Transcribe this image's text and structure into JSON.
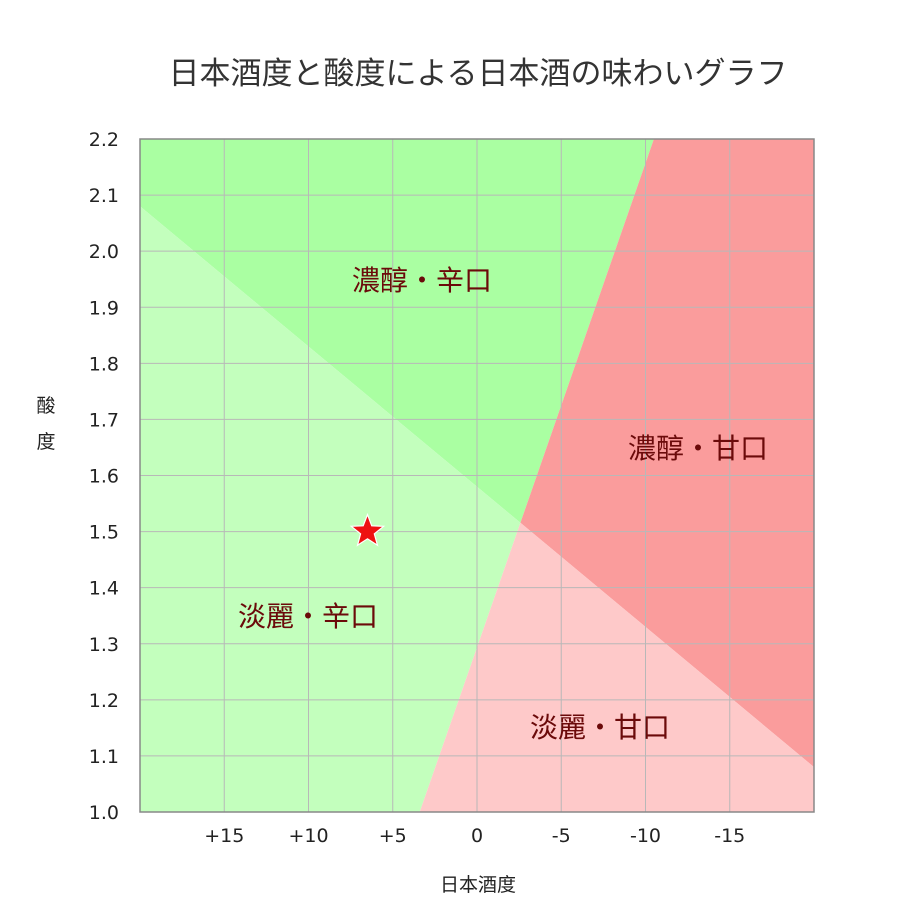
{
  "chart_data": {
    "type": "scatter",
    "title": "日本酒度と酸度による日本酒の味わいグラフ",
    "xlabel": "日本酒度",
    "ylabel": "酸度",
    "x_reversed": true,
    "xlim": [
      20,
      -20
    ],
    "ylim": [
      1.0,
      2.2
    ],
    "xticks": [
      15,
      10,
      5,
      0,
      -5,
      -10,
      -15
    ],
    "xtick_labels": [
      "+15",
      "+10",
      "+5",
      "0",
      "-5",
      "-10",
      "-15"
    ],
    "yticks": [
      1.0,
      1.1,
      1.2,
      1.3,
      1.4,
      1.5,
      1.6,
      1.7,
      1.8,
      1.9,
      2.0,
      2.1,
      2.2
    ],
    "ytick_labels": [
      "1.0",
      "1.1",
      "1.2",
      "1.3",
      "1.4",
      "1.5",
      "1.6",
      "1.7",
      "1.8",
      "1.9",
      "2.0",
      "2.1",
      "2.2"
    ],
    "grid": true,
    "points": [
      {
        "x": 6.5,
        "y": 1.5,
        "marker": "star",
        "color": "#ee1111"
      }
    ],
    "region_boundaries": {
      "sweet_dry_line": [
        [
          3.4,
          1.0
        ],
        [
          -10.5,
          2.2
        ]
      ],
      "rich_light_line": [
        [
          20,
          2.08
        ],
        [
          -20,
          1.08
        ]
      ]
    },
    "regions": [
      {
        "label": "濃醇・辛口",
        "color": "#aaffa2"
      },
      {
        "label": "濃醇・甘口",
        "color": "#fa9c9c"
      },
      {
        "label": "淡麗・辛口",
        "color": "#c3ffbd"
      },
      {
        "label": "淡麗・甘口",
        "color": "#fec9c9"
      }
    ],
    "grid_color": "#b8b8b8",
    "frame_color": "#888888"
  }
}
